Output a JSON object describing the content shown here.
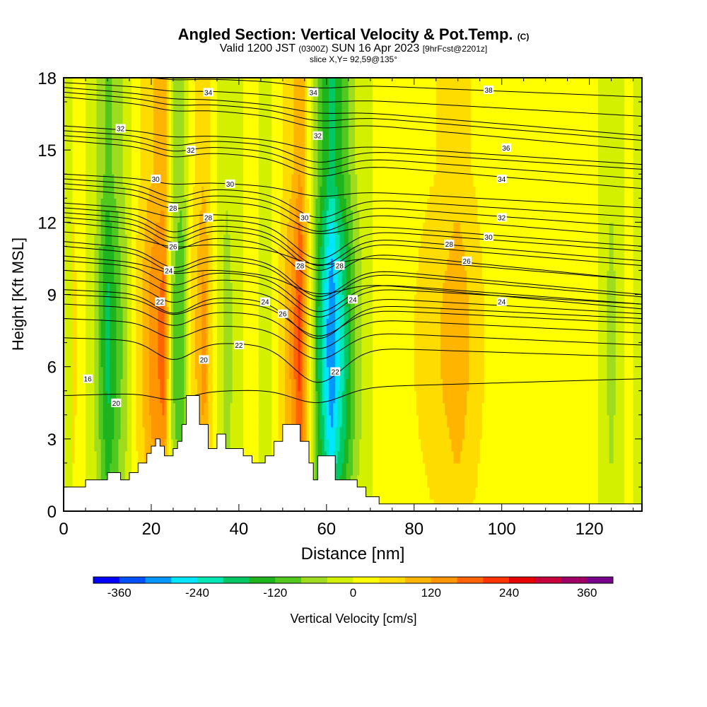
{
  "chart_data": {
    "type": "heatmap",
    "title": "Angled Section: Vertical Velocity & Pot.Temp.",
    "title_suffix": "(C)",
    "subtitle_parts": [
      "Valid 1200 JST",
      "(0300Z)",
      "SUN 16 Apr 2023",
      "[9hrFcst@2201z]"
    ],
    "subtitle2": "slice X,Y= 92,59@135°",
    "xlabel": "Distance [nm]",
    "ylabel": "Height [Kft MSL]",
    "xlim": [
      0,
      132
    ],
    "ylim": [
      0,
      18
    ],
    "x_ticks": [
      "0",
      "20",
      "40",
      "60",
      "80",
      "100",
      "120"
    ],
    "y_ticks": [
      "0",
      "3",
      "6",
      "9",
      "12",
      "15",
      "18"
    ],
    "grid": false,
    "colorbar": {
      "label": "Vertical Velocity [cm/s]",
      "ticks": [
        "-360",
        "-240",
        "-120",
        "0",
        "120",
        "240",
        "360"
      ],
      "colors": [
        "#0000ff",
        "#0050ff",
        "#0096ff",
        "#00e6ff",
        "#00e6b4",
        "#00c864",
        "#1eb41e",
        "#50c81e",
        "#a0dc1e",
        "#d2f000",
        "#ffff00",
        "#ffdc00",
        "#ffb400",
        "#ff9600",
        "#ff6400",
        "#ff3200",
        "#e60000",
        "#c8003c",
        "#a00064",
        "#78008c"
      ]
    },
    "velocity_columns": [
      {
        "x": 2,
        "v": 60
      },
      {
        "x": 7,
        "v": -40
      },
      {
        "x": 10,
        "v": -180
      },
      {
        "x": 14,
        "v": -60
      },
      {
        "x": 17,
        "v": 60
      },
      {
        "x": 20,
        "v": 140
      },
      {
        "x": 23,
        "v": 180
      },
      {
        "x": 25,
        "v": -80
      },
      {
        "x": 27,
        "v": -120
      },
      {
        "x": 29,
        "v": 40
      },
      {
        "x": 32,
        "v": 140
      },
      {
        "x": 34,
        "v": 40
      },
      {
        "x": 37,
        "v": -60
      },
      {
        "x": 40,
        "v": -20
      },
      {
        "x": 43,
        "v": 40
      },
      {
        "x": 46,
        "v": -40
      },
      {
        "x": 49,
        "v": 40
      },
      {
        "x": 52,
        "v": 130
      },
      {
        "x": 54,
        "v": 220
      },
      {
        "x": 56,
        "v": 40
      },
      {
        "x": 58,
        "v": -150
      },
      {
        "x": 61,
        "v": -330
      },
      {
        "x": 64,
        "v": -200
      },
      {
        "x": 67,
        "v": -60
      },
      {
        "x": 72,
        "v": 20
      },
      {
        "x": 80,
        "v": 40
      },
      {
        "x": 86,
        "v": 80
      },
      {
        "x": 90,
        "v": 110
      },
      {
        "x": 96,
        "v": 40
      },
      {
        "x": 104,
        "v": 20
      },
      {
        "x": 110,
        "v": 40
      },
      {
        "x": 116,
        "v": 0
      },
      {
        "x": 120,
        "v": 40
      },
      {
        "x": 125,
        "v": -60
      },
      {
        "x": 129,
        "v": 20
      },
      {
        "x": 132,
        "v": -40
      }
    ],
    "terrain": [
      {
        "x": 0,
        "h": 1.0
      },
      {
        "x": 4,
        "h": 1.0
      },
      {
        "x": 5,
        "h": 1.3
      },
      {
        "x": 9,
        "h": 1.3
      },
      {
        "x": 10,
        "h": 1.6
      },
      {
        "x": 13,
        "h": 1.3
      },
      {
        "x": 15,
        "h": 1.6
      },
      {
        "x": 17,
        "h": 2.0
      },
      {
        "x": 19,
        "h": 2.4
      },
      {
        "x": 20,
        "h": 2.7
      },
      {
        "x": 21,
        "h": 3.0
      },
      {
        "x": 22,
        "h": 2.7
      },
      {
        "x": 23,
        "h": 2.3
      },
      {
        "x": 25,
        "h": 2.6
      },
      {
        "x": 26,
        "h": 2.9
      },
      {
        "x": 27,
        "h": 3.6
      },
      {
        "x": 28,
        "h": 4.8
      },
      {
        "x": 30,
        "h": 4.8
      },
      {
        "x": 31,
        "h": 3.6
      },
      {
        "x": 33,
        "h": 2.6
      },
      {
        "x": 35,
        "h": 3.2
      },
      {
        "x": 37,
        "h": 2.6
      },
      {
        "x": 39,
        "h": 2.6
      },
      {
        "x": 41,
        "h": 2.3
      },
      {
        "x": 43,
        "h": 2.0
      },
      {
        "x": 46,
        "h": 2.3
      },
      {
        "x": 48,
        "h": 2.9
      },
      {
        "x": 50,
        "h": 3.6
      },
      {
        "x": 53,
        "h": 3.6
      },
      {
        "x": 54,
        "h": 2.9
      },
      {
        "x": 56,
        "h": 2.0
      },
      {
        "x": 57,
        "h": 1.3
      },
      {
        "x": 58,
        "h": 2.3
      },
      {
        "x": 61,
        "h": 2.3
      },
      {
        "x": 62,
        "h": 1.3
      },
      {
        "x": 67,
        "h": 1.0
      },
      {
        "x": 69,
        "h": 0.6
      },
      {
        "x": 72,
        "h": 0.3
      },
      {
        "x": 132,
        "h": 0.3
      }
    ],
    "theta_isolines": [
      {
        "label": "16",
        "y0": 4.8,
        "y1": 5.5,
        "dip": 0.1,
        "label_xy": [
          5.5,
          5.5
        ]
      },
      {
        "label": "20",
        "y0": 7.2,
        "y1": 6.4,
        "dip": 0.25,
        "label_xy": [
          12,
          4.5
        ]
      },
      {
        "label": "20",
        "y0": 8.0,
        "y1": 6.9,
        "dip": 0.2,
        "label_xy": [
          32,
          6.3
        ]
      },
      {
        "label": "22",
        "y0": 8.6,
        "y1": 7.4,
        "dip": 0.22,
        "label_xy": [
          22,
          8.7
        ]
      },
      {
        "label": "22",
        "y0": 9.0,
        "y1": 7.8,
        "dip": 0.2,
        "label_xy": [
          40,
          6.9
        ]
      },
      {
        "label": "22",
        "y0": 9.2,
        "y1": 8.0,
        "dip": 0.25,
        "label_xy": [
          62,
          5.8
        ]
      },
      {
        "label": "24",
        "y0": 9.6,
        "y1": 8.2,
        "dip": 0.22,
        "label_xy": [
          24,
          10.0
        ]
      },
      {
        "label": "24",
        "y0": 10.0,
        "y1": 8.6,
        "dip": 0.22,
        "label_xy": [
          46,
          8.7
        ]
      },
      {
        "label": "24",
        "y0": 10.4,
        "y1": 8.6,
        "dip": 0.22,
        "label_xy": [
          66,
          8.8
        ]
      },
      {
        "label": "24",
        "y0": 10.6,
        "y1": 8.4,
        "dip": 0.1,
        "label_xy": [
          100,
          8.7
        ]
      },
      {
        "label": "26",
        "y0": 11.0,
        "y1": 8.9,
        "dip": 0.22,
        "label_xy": [
          25,
          11.0
        ]
      },
      {
        "label": "26",
        "y0": 11.2,
        "y1": 9.0,
        "dip": 0.22,
        "label_xy": [
          50,
          8.2
        ]
      },
      {
        "label": "26",
        "y0": 11.6,
        "y1": 9.6,
        "dip": 0.08,
        "label_xy": [
          92,
          10.4
        ]
      },
      {
        "label": "28",
        "y0": 12.0,
        "y1": 9.6,
        "dip": 0.22,
        "label_xy": [
          25,
          12.6
        ]
      },
      {
        "label": "28",
        "y0": 12.2,
        "y1": 10.2,
        "dip": 0.22,
        "label_xy": [
          33,
          12.2
        ]
      },
      {
        "label": "28",
        "y0": 12.4,
        "y1": 10.4,
        "dip": 0.22,
        "label_xy": [
          54,
          10.2
        ]
      },
      {
        "label": "28",
        "y0": 12.6,
        "y1": 10.8,
        "dip": 0.22,
        "label_xy": [
          63,
          10.2
        ]
      },
      {
        "label": "28",
        "y0": 12.8,
        "y1": 11.0,
        "dip": 0.08,
        "label_xy": [
          88,
          11.1
        ]
      },
      {
        "label": "30",
        "y0": 13.4,
        "y1": 11.4,
        "dip": 0.15,
        "label_xy": [
          21,
          13.8
        ]
      },
      {
        "label": "30",
        "y0": 13.6,
        "y1": 11.8,
        "dip": 0.15,
        "label_xy": [
          38,
          13.6
        ]
      },
      {
        "label": "30",
        "y0": 13.8,
        "y1": 12.2,
        "dip": 0.15,
        "label_xy": [
          55,
          12.2
        ]
      },
      {
        "label": "30",
        "y0": 14.0,
        "y1": 12.6,
        "dip": 0.05,
        "label_xy": [
          97,
          11.4
        ]
      },
      {
        "label": "32",
        "y0": 15.4,
        "y1": 13.4,
        "dip": 0.1,
        "label_xy": [
          13,
          15.9
        ]
      },
      {
        "label": "32",
        "y0": 15.6,
        "y1": 13.8,
        "dip": 0.1,
        "label_xy": [
          29,
          15.0
        ]
      },
      {
        "label": "32",
        "y0": 15.8,
        "y1": 14.2,
        "dip": 0.1,
        "label_xy": [
          58,
          15.6
        ]
      },
      {
        "label": "32",
        "y0": 16.0,
        "y1": 14.4,
        "dip": 0.05,
        "label_xy": [
          100,
          12.2
        ]
      },
      {
        "label": "34",
        "y0": 17.2,
        "y1": 15.0,
        "dip": 0.05,
        "label_xy": [
          33,
          17.4
        ]
      },
      {
        "label": "34",
        "y0": 17.4,
        "y1": 15.4,
        "dip": 0.05,
        "label_xy": [
          57,
          17.4
        ]
      },
      {
        "label": "34",
        "y0": 17.6,
        "y1": 15.6,
        "dip": 0.03,
        "label_xy": [
          100,
          13.8
        ]
      },
      {
        "label": "36",
        "y0": 17.8,
        "y1": 16.4,
        "dip": 0.03,
        "label_xy": [
          101,
          15.1
        ]
      },
      {
        "label": "38",
        "y0": 18.2,
        "y1": 17.2,
        "dip": 0.03,
        "label_xy": [
          97,
          17.5
        ]
      }
    ]
  }
}
